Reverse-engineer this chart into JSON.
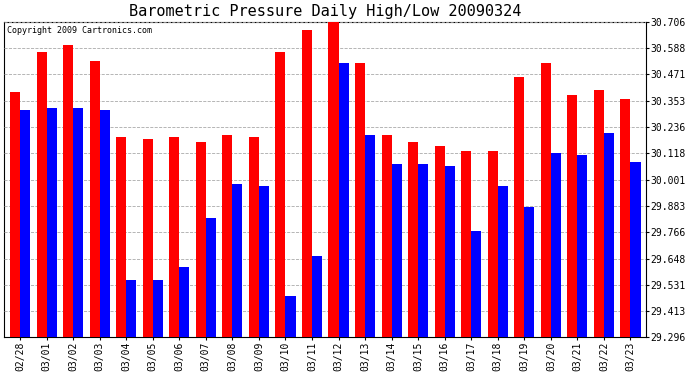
{
  "title": "Barometric Pressure Daily High/Low 20090324",
  "copyright": "Copyright 2009 Cartronics.com",
  "categories": [
    "02/28",
    "03/01",
    "03/02",
    "03/03",
    "03/04",
    "03/05",
    "03/06",
    "03/07",
    "03/08",
    "03/09",
    "03/10",
    "03/11",
    "03/12",
    "03/13",
    "03/14",
    "03/15",
    "03/16",
    "03/17",
    "03/18",
    "03/19",
    "03/20",
    "03/21",
    "03/22",
    "03/23"
  ],
  "highs": [
    30.39,
    30.57,
    30.6,
    30.53,
    30.19,
    30.18,
    30.19,
    30.17,
    30.2,
    30.19,
    30.57,
    30.67,
    30.71,
    30.52,
    30.2,
    30.17,
    30.15,
    30.13,
    30.13,
    30.46,
    30.52,
    30.38,
    30.4,
    30.36
  ],
  "lows": [
    30.31,
    30.32,
    30.32,
    30.31,
    29.55,
    29.55,
    29.61,
    29.83,
    29.98,
    29.97,
    29.48,
    29.66,
    30.52,
    30.2,
    30.07,
    30.07,
    30.06,
    29.77,
    29.97,
    29.88,
    30.12,
    30.11,
    30.21,
    30.08
  ],
  "ymin": 29.296,
  "ymax": 30.706,
  "yticks": [
    29.296,
    29.413,
    29.531,
    29.648,
    29.766,
    29.883,
    30.001,
    30.118,
    30.236,
    30.353,
    30.471,
    30.588,
    30.706
  ],
  "high_color": "#FF0000",
  "low_color": "#0000FF",
  "background_color": "#FFFFFF",
  "plot_bg_color": "#FFFFFF",
  "grid_color": "#AAAAAA",
  "title_fontsize": 11,
  "tick_fontsize": 7,
  "bar_width": 0.38
}
